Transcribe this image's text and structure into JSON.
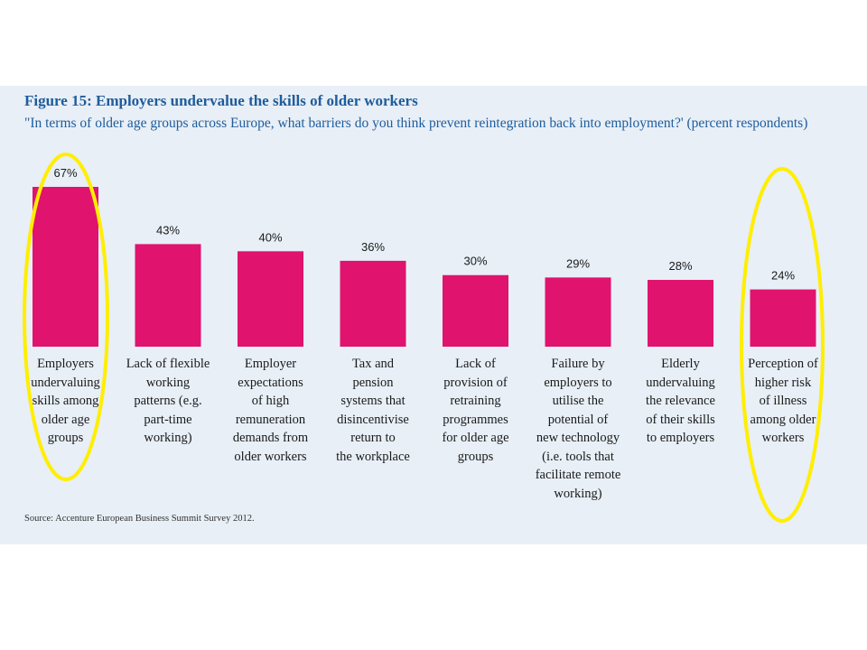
{
  "chart_data": {
    "type": "bar",
    "title": "Figure 15: Employers undervalue the skills of older workers",
    "subtitle": "\"In terms of older age groups across Europe, what barriers do you think prevent reintegration back into employment?' (percent respondents)",
    "categories": [
      "Employers\nundervaluing\nskills among\nolder age\ngroups",
      "Lack of flexible\nworking\npatterns (e.g.\npart-time\nworking)",
      "Employer\nexpectations\nof high\nremuneration\ndemands from\nolder workers",
      "Tax and\npension\nsystems that\ndisincentivise\nreturn to\nthe workplace",
      "Lack of\nprovision of\nretraining\nprogrammes\nfor older age\ngroups",
      "Failure by\nemployers to\nutilise the\npotential of\nnew technology\n(i.e. tools that\nfacilitate remote\nworking)",
      "Elderly\nundervaluing\nthe relevance\nof their skills\nto employers",
      "Perception of\nhigher risk\nof illness\namong older\nworkers"
    ],
    "values": [
      67,
      43,
      40,
      36,
      30,
      29,
      28,
      24
    ],
    "value_labels": [
      "67%",
      "43%",
      "40%",
      "36%",
      "30%",
      "29%",
      "28%",
      "24%"
    ],
    "ylim": [
      0,
      67
    ],
    "bar_color": "#e0136e",
    "highlight_color": "#ffee00",
    "highlighted_categories": [
      0,
      7
    ],
    "grid": false,
    "source": "Source: Accenture European Business Summit Survey 2012."
  }
}
